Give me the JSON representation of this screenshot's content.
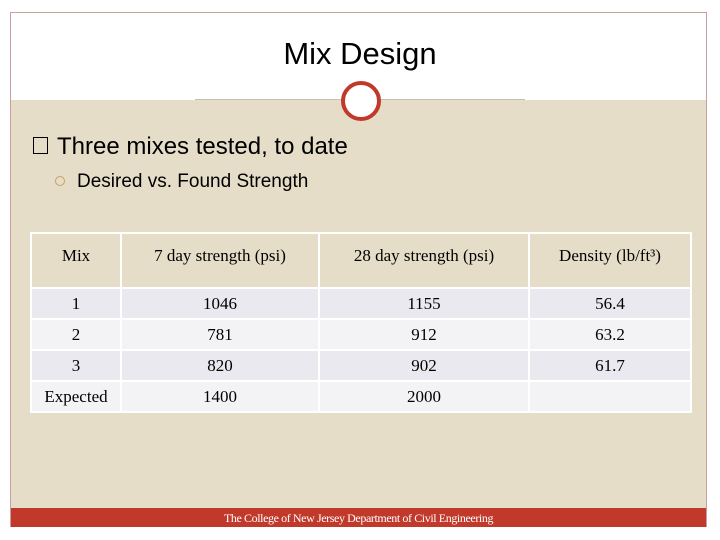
{
  "header": {
    "title": "Mix Design"
  },
  "bullets": [
    {
      "text": "Three mixes tested, to date",
      "sub": [
        "Desired vs. Found Strength"
      ]
    }
  ],
  "table": {
    "headers": [
      "Mix",
      "7 day strength (psi)",
      "28 day strength (psi)",
      "Density (lb/ft³)"
    ],
    "rows": [
      [
        "1",
        "1046",
        "1155",
        "56.4"
      ],
      [
        "2",
        "781",
        "912",
        "63.2"
      ],
      [
        "3",
        "820",
        "902",
        "61.7"
      ],
      [
        "Expected",
        "1400",
        "2000"
      ]
    ]
  },
  "footer": {
    "text": "The College of New Jersey Department of Civil Engineering"
  }
}
